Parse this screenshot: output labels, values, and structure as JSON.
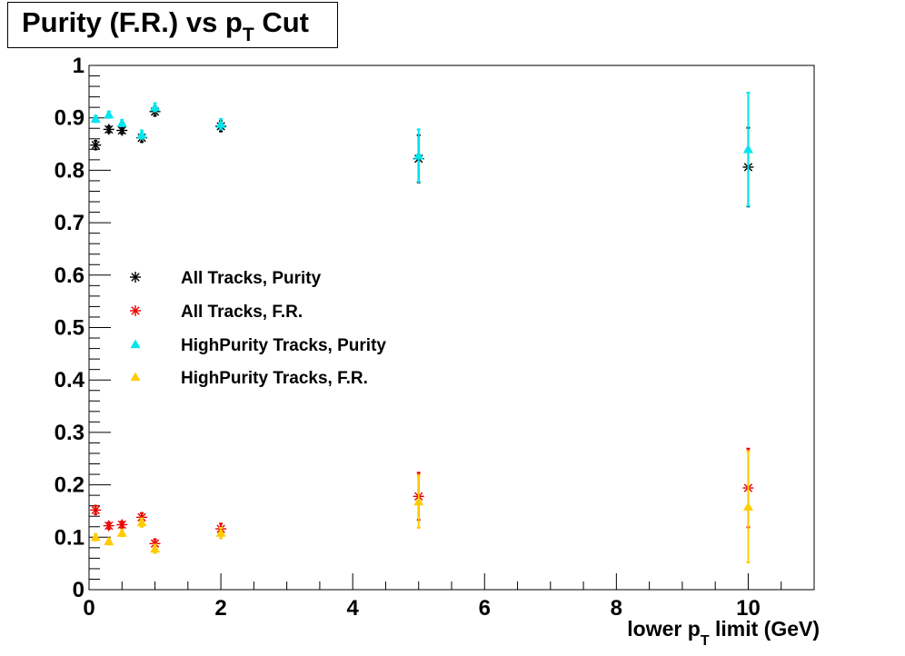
{
  "title": {
    "main": "Purity (F.R.) vs p",
    "sub": "T",
    "suffix": " Cut"
  },
  "xlabel": {
    "main": "lower p",
    "sub": "T",
    "suffix": " limit (GeV)"
  },
  "colors": {
    "purity_all": "#000000",
    "fr_all": "#e60000",
    "purity_hp": "#00e5ee",
    "fr_hp": "#ffcc00"
  },
  "chart_data": {
    "type": "scatter",
    "title": "Purity (F.R.) vs pT Cut",
    "xlabel": "lower pT limit (GeV)",
    "ylabel": "",
    "xlim": [
      0,
      11
    ],
    "ylim": [
      0,
      1
    ],
    "x_ticks": [
      "0",
      "2",
      "4",
      "6",
      "8",
      "10"
    ],
    "y_ticks": [
      "0",
      "0.1",
      "0.2",
      "0.3",
      "0.4",
      "0.5",
      "0.6",
      "0.7",
      "0.8",
      "0.9",
      "1"
    ],
    "grid": false,
    "legend_position": "center-left",
    "series": [
      {
        "name": "All Tracks, Purity",
        "marker": "star",
        "color": "#000000",
        "x": [
          0.1,
          0.3,
          0.5,
          0.8,
          1,
          2,
          5,
          10
        ],
        "y": [
          0.848,
          0.878,
          0.876,
          0.862,
          0.912,
          0.884,
          0.822,
          0.806
        ],
        "err": [
          0.008,
          0.006,
          0.006,
          0.008,
          0.008,
          0.01,
          0.045,
          0.075
        ]
      },
      {
        "name": "All Tracks, F.R.",
        "marker": "star",
        "color": "#e60000",
        "x": [
          0.1,
          0.3,
          0.5,
          0.8,
          1,
          2,
          5,
          10
        ],
        "y": [
          0.152,
          0.122,
          0.124,
          0.138,
          0.088,
          0.116,
          0.178,
          0.194
        ],
        "err": [
          0.008,
          0.006,
          0.006,
          0.008,
          0.008,
          0.01,
          0.045,
          0.075
        ]
      },
      {
        "name": "HighPurity Tracks, Purity",
        "marker": "triangle",
        "color": "#00e5ee",
        "x": [
          0.1,
          0.3,
          0.5,
          0.8,
          1,
          2,
          5,
          10
        ],
        "y": [
          0.898,
          0.906,
          0.89,
          0.868,
          0.92,
          0.888,
          0.828,
          0.84
        ],
        "err": [
          0.006,
          0.006,
          0.006,
          0.008,
          0.008,
          0.01,
          0.05,
          0.108
        ]
      },
      {
        "name": "HighPurity Tracks, F.R.",
        "marker": "triangle",
        "color": "#ffcc00",
        "x": [
          0.1,
          0.3,
          0.5,
          0.8,
          1,
          2,
          5,
          10
        ],
        "y": [
          0.1,
          0.092,
          0.108,
          0.128,
          0.078,
          0.108,
          0.168,
          0.158
        ],
        "err": [
          0.006,
          0.006,
          0.006,
          0.008,
          0.008,
          0.01,
          0.05,
          0.106
        ]
      }
    ]
  }
}
